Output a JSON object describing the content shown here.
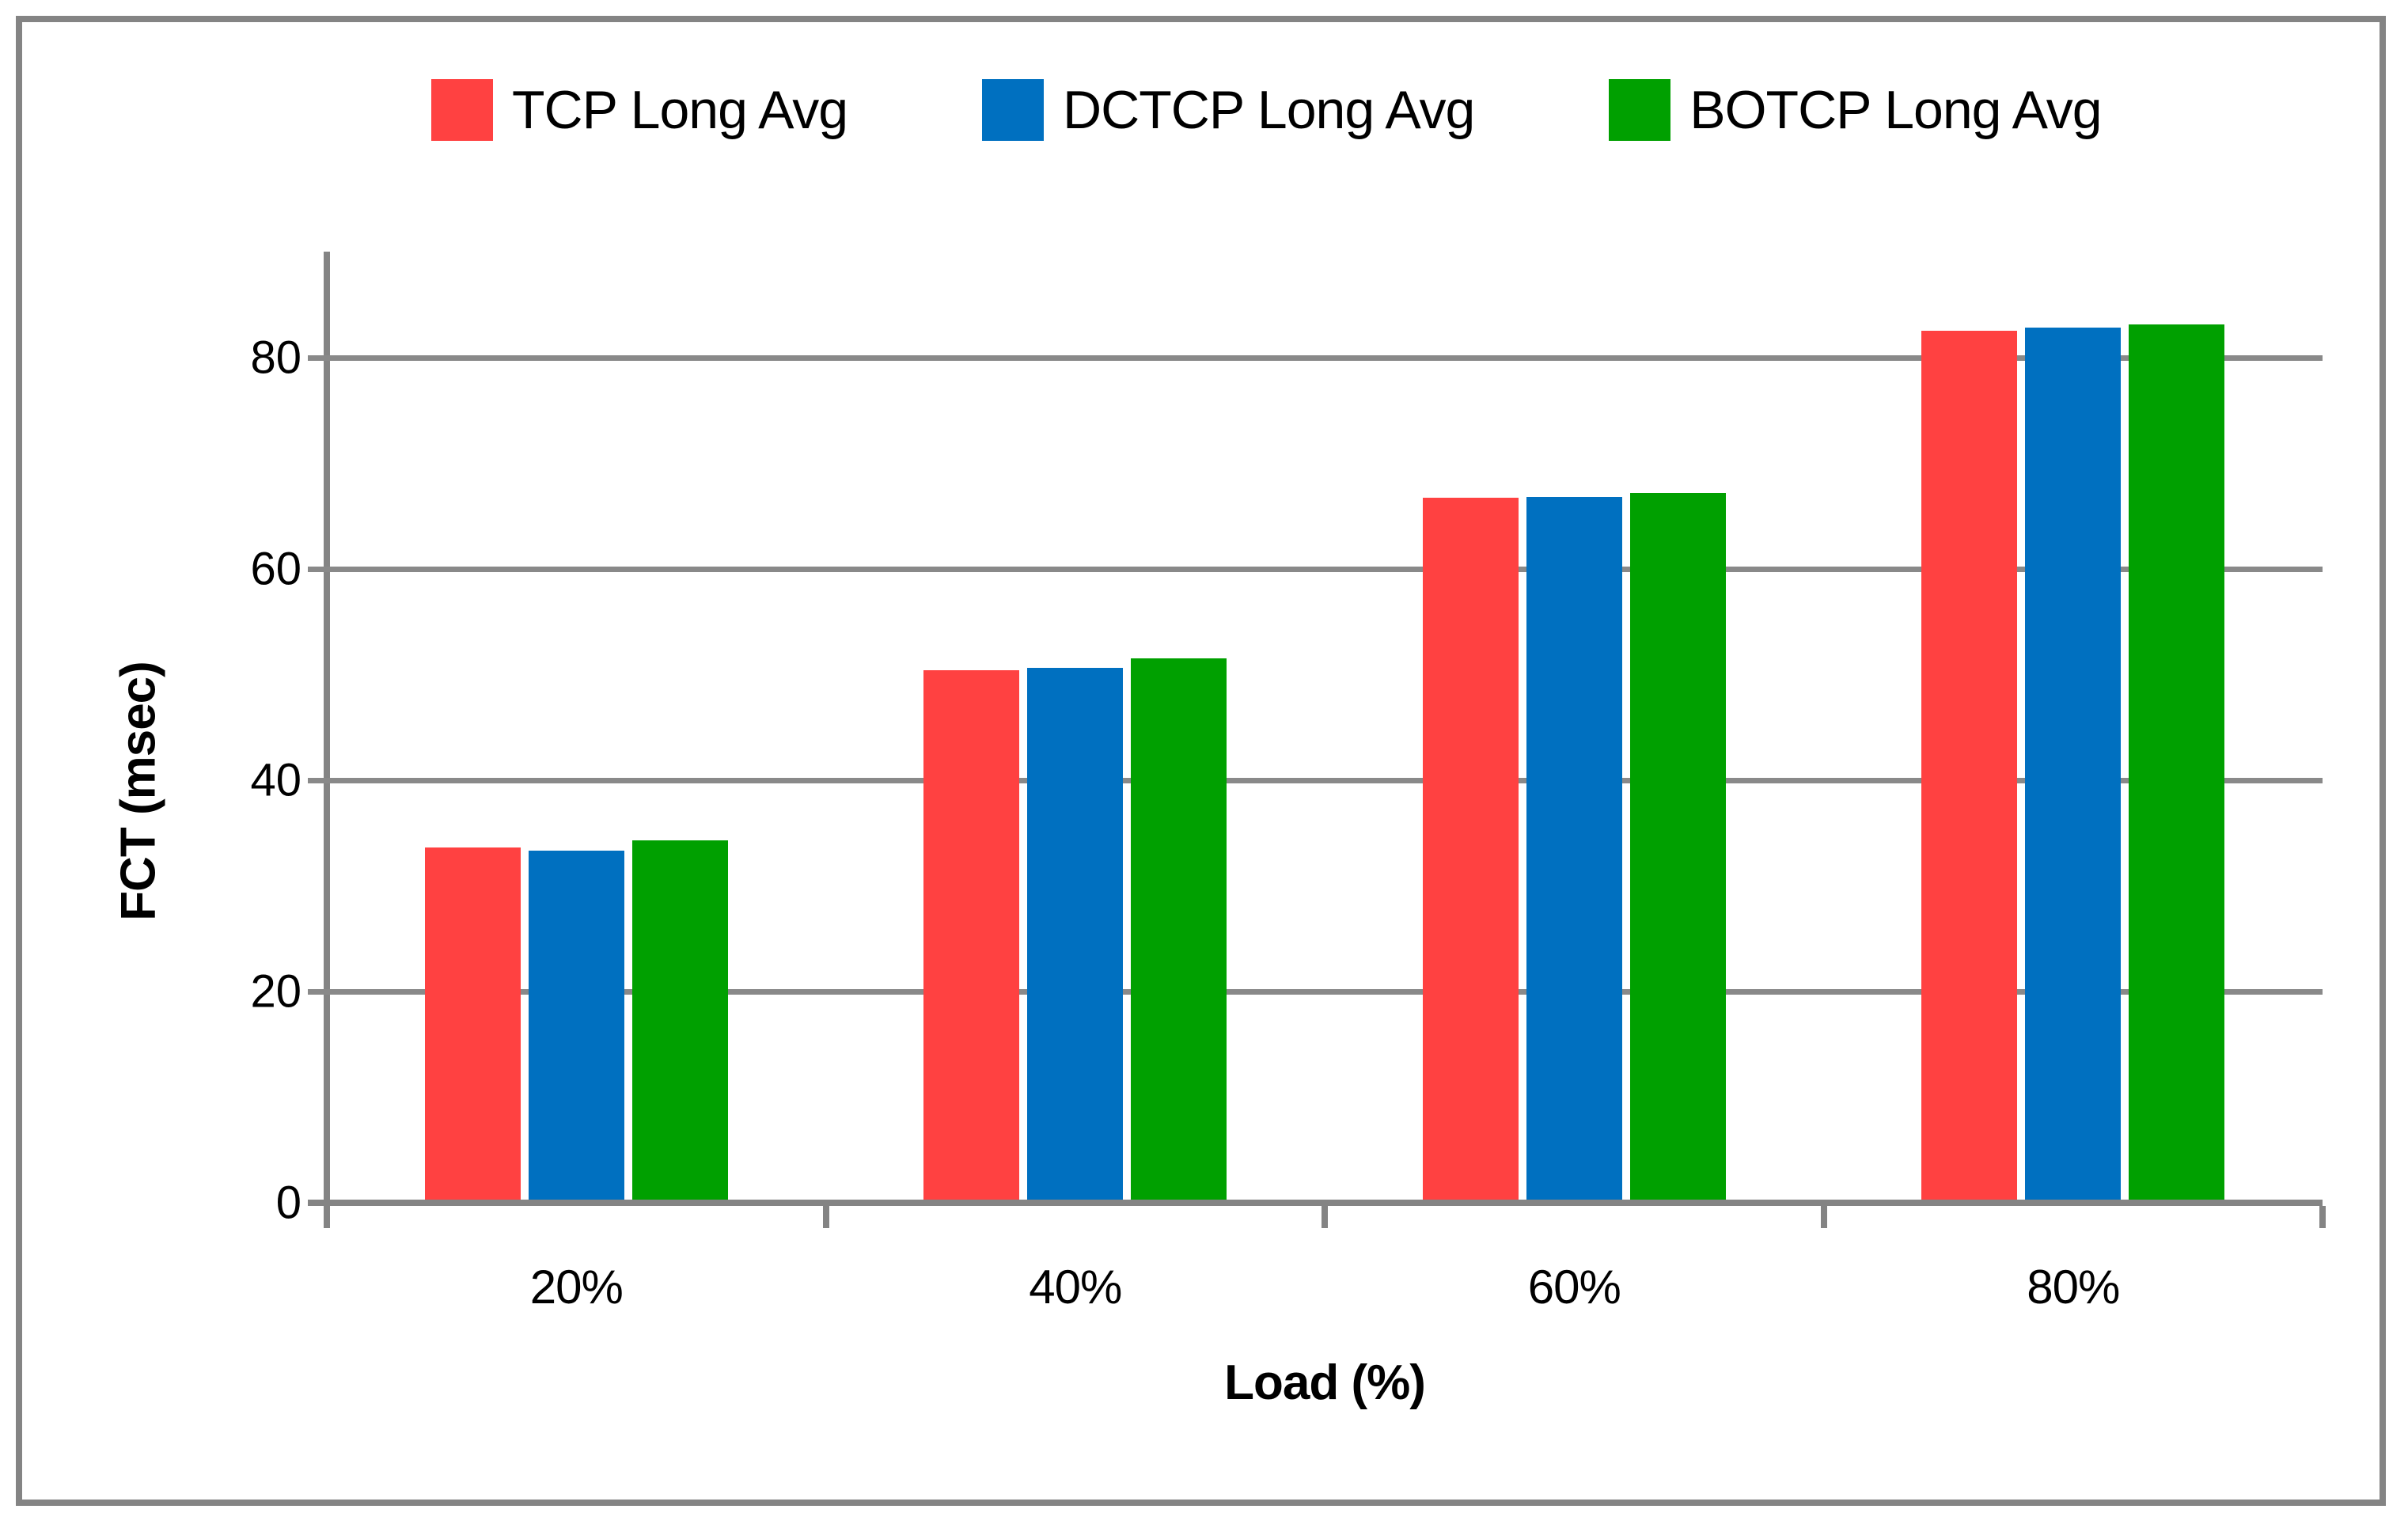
{
  "chart_data": {
    "type": "bar",
    "title": "",
    "categories": [
      "20%",
      "40%",
      "60%",
      "80%"
    ],
    "series": [
      {
        "name": "TCP Long Avg",
        "color": "#FF4141",
        "values": [
          33.3,
          50.1,
          66.4,
          82.2
        ]
      },
      {
        "name": "DCTCP Long Avg",
        "color": "#0070C0",
        "values": [
          33.0,
          50.3,
          66.5,
          82.5
        ]
      },
      {
        "name": "BOTCP Long Avg",
        "color": "#00A000",
        "values": [
          34.0,
          51.2,
          66.9,
          82.8
        ]
      }
    ],
    "xlabel": "Load (%)",
    "ylabel": "FCT (msec)",
    "ylim": [
      0,
      90
    ],
    "yticks": [
      0,
      20,
      40,
      60,
      80
    ],
    "grid": true,
    "legend_position": "top",
    "colors": {
      "axis": "#848484",
      "gridline": "#898989",
      "text": "#000000",
      "background": "#ffffff"
    }
  }
}
